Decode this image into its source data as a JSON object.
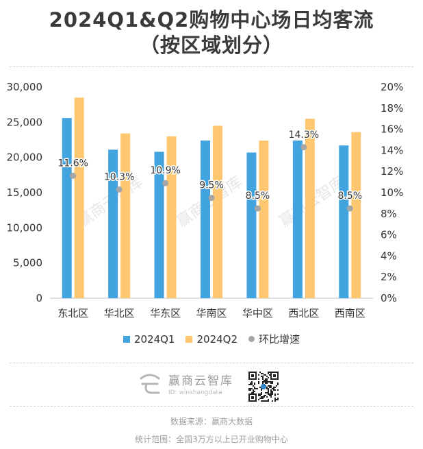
{
  "title_line1": "2024Q1&Q2购物中心场日均客流",
  "title_line2": "（按区域划分）",
  "chart_data": {
    "type": "bar",
    "categories": [
      "东北区",
      "华北区",
      "华东区",
      "华南区",
      "华中区",
      "西北区",
      "西南区"
    ],
    "series": [
      {
        "name": "2024Q1",
        "type": "bar",
        "axis": "left",
        "color": "#41a4de",
        "values": [
          25600,
          21100,
          20800,
          22400,
          20700,
          22400,
          21700
        ]
      },
      {
        "name": "2024Q2",
        "type": "bar",
        "axis": "left",
        "color": "#ffc870",
        "values": [
          28500,
          23400,
          23000,
          24500,
          22400,
          25500,
          23600
        ]
      },
      {
        "name": "环比增速",
        "type": "scatter",
        "axis": "right",
        "color": "#a6a6a6",
        "values": [
          11.6,
          10.3,
          10.9,
          9.5,
          8.5,
          14.3,
          8.5
        ],
        "labels": [
          "11.6%",
          "10.3%",
          "10.9%",
          "9.5%",
          "8.5%",
          "14.3%",
          "8.5%"
        ]
      }
    ],
    "ylim_left": [
      0,
      30000
    ],
    "yticks_left": [
      "0",
      "5,000",
      "10,000",
      "15,000",
      "20,000",
      "25,000",
      "30,000"
    ],
    "ylim_right": [
      0,
      20
    ],
    "yticks_right": [
      "0%",
      "2%",
      "4%",
      "6%",
      "8%",
      "10%",
      "12%",
      "14%",
      "16%",
      "18%",
      "20%"
    ],
    "legend_position": "bottom",
    "grid": false
  },
  "watermark": "赢商云智库",
  "brand": {
    "name": "赢商云智库",
    "id": "ID: winshangdata"
  },
  "footer": {
    "source": "数据来源：赢商大数据",
    "scope": "统计范围：全国3万方以上已开业购物中心"
  }
}
